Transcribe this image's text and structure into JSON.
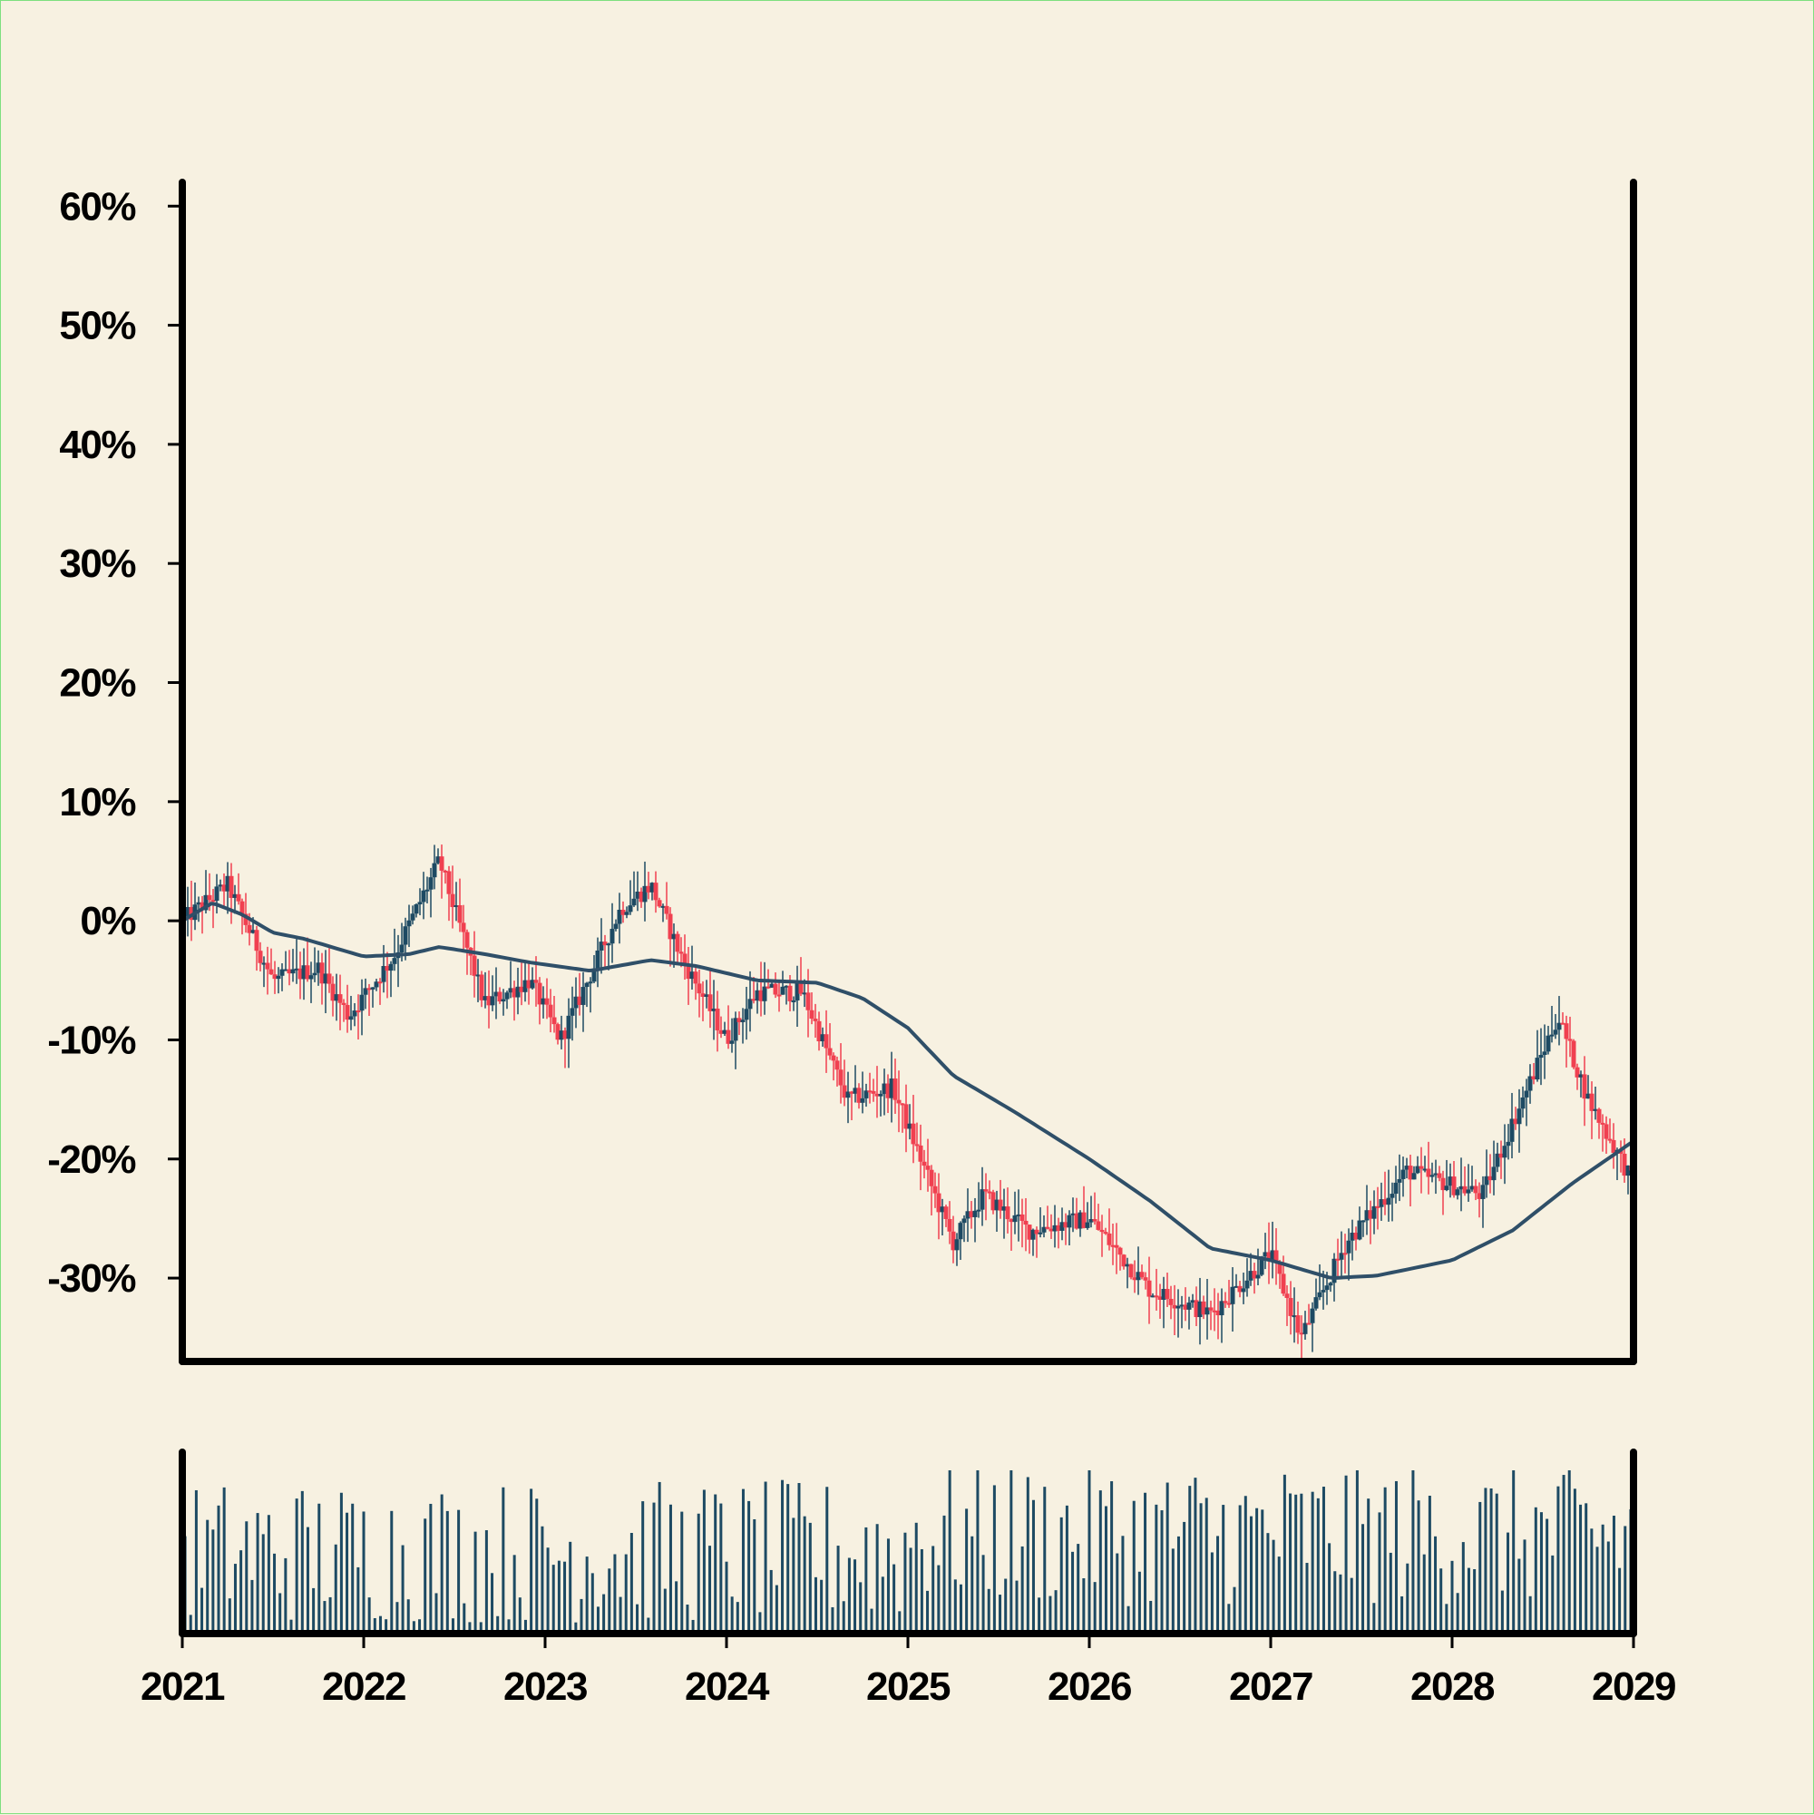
{
  "chart_data": {
    "type": "candlestick",
    "title": "",
    "xlabel": "",
    "ylabel": "",
    "x_range": [
      "2021-01",
      "2029-01"
    ],
    "ylim": [
      -37,
      62
    ],
    "x_ticks": [
      "2021",
      "2022",
      "2023",
      "2024",
      "2025",
      "2026",
      "2027",
      "2028",
      "2029"
    ],
    "y_ticks": [
      {
        "value": 60,
        "label": "60%"
      },
      {
        "value": 50,
        "label": "50%"
      },
      {
        "value": 40,
        "label": "40%"
      },
      {
        "value": 30,
        "label": "30%"
      },
      {
        "value": 20,
        "label": "20%"
      },
      {
        "value": 10,
        "label": "10%"
      },
      {
        "value": 0,
        "label": "0%"
      },
      {
        "value": -10,
        "label": "-10%"
      },
      {
        "value": -20,
        "label": "-20%"
      },
      {
        "value": -30,
        "label": "-30%"
      }
    ],
    "close_path": [
      {
        "date": "2021-01",
        "value": 0
      },
      {
        "date": "2021-04",
        "value": 3
      },
      {
        "date": "2021-07",
        "value": -5
      },
      {
        "date": "2021-10",
        "value": -4
      },
      {
        "date": "2021-12",
        "value": -8
      },
      {
        "date": "2022-03",
        "value": -3
      },
      {
        "date": "2022-06",
        "value": 5
      },
      {
        "date": "2022-09",
        "value": -7
      },
      {
        "date": "2022-12",
        "value": -5
      },
      {
        "date": "2023-02",
        "value": -10
      },
      {
        "date": "2023-06",
        "value": 1
      },
      {
        "date": "2023-08",
        "value": 3
      },
      {
        "date": "2023-10",
        "value": -3
      },
      {
        "date": "2024-01",
        "value": -10
      },
      {
        "date": "2024-03",
        "value": -6
      },
      {
        "date": "2024-06",
        "value": -6
      },
      {
        "date": "2024-09",
        "value": -15
      },
      {
        "date": "2024-12",
        "value": -14
      },
      {
        "date": "2025-04",
        "value": -27
      },
      {
        "date": "2025-06",
        "value": -23
      },
      {
        "date": "2025-09",
        "value": -26
      },
      {
        "date": "2026-01",
        "value": -25
      },
      {
        "date": "2026-05",
        "value": -31
      },
      {
        "date": "2026-09",
        "value": -33
      },
      {
        "date": "2027-01",
        "value": -28
      },
      {
        "date": "2027-03",
        "value": -35
      },
      {
        "date": "2027-06",
        "value": -27
      },
      {
        "date": "2027-10",
        "value": -21
      },
      {
        "date": "2028-03",
        "value": -23
      },
      {
        "date": "2028-06",
        "value": -14
      },
      {
        "date": "2028-08",
        "value": -8
      },
      {
        "date": "2028-10",
        "value": -15
      },
      {
        "date": "2029-01",
        "value": -22
      }
    ],
    "moving_average": [
      {
        "date": "2021-01",
        "value": 0
      },
      {
        "date": "2021-03",
        "value": 1.5
      },
      {
        "date": "2021-05",
        "value": 0.5
      },
      {
        "date": "2021-07",
        "value": -1
      },
      {
        "date": "2021-09",
        "value": -1.5
      },
      {
        "date": "2022-01",
        "value": -3
      },
      {
        "date": "2022-04",
        "value": -2.8
      },
      {
        "date": "2022-06",
        "value": -2.2
      },
      {
        "date": "2022-09",
        "value": -2.8
      },
      {
        "date": "2022-12",
        "value": -3.5
      },
      {
        "date": "2023-04",
        "value": -4.2
      },
      {
        "date": "2023-08",
        "value": -3.3
      },
      {
        "date": "2023-11",
        "value": -3.8
      },
      {
        "date": "2024-03",
        "value": -5
      },
      {
        "date": "2024-07",
        "value": -5.2
      },
      {
        "date": "2024-10",
        "value": -6.5
      },
      {
        "date": "2025-01",
        "value": -9
      },
      {
        "date": "2025-04",
        "value": -13
      },
      {
        "date": "2025-08",
        "value": -16
      },
      {
        "date": "2026-01",
        "value": -20
      },
      {
        "date": "2026-05",
        "value": -23.5
      },
      {
        "date": "2026-09",
        "value": -27.5
      },
      {
        "date": "2027-01",
        "value": -28.5
      },
      {
        "date": "2027-05",
        "value": -30
      },
      {
        "date": "2027-08",
        "value": -29.8
      },
      {
        "date": "2028-01",
        "value": -28.5
      },
      {
        "date": "2028-05",
        "value": -26
      },
      {
        "date": "2028-09",
        "value": -22
      },
      {
        "date": "2029-01",
        "value": -18.5
      }
    ],
    "volume_ylim": [
      0,
      100
    ],
    "grid": false,
    "legend": "none",
    "colors": {
      "up": "#1d4a63",
      "down": "#f04050",
      "moving_average": "#2f4f68",
      "volume": "#1d4a63",
      "axis": "#000000",
      "background": "#f7f1e1"
    }
  }
}
